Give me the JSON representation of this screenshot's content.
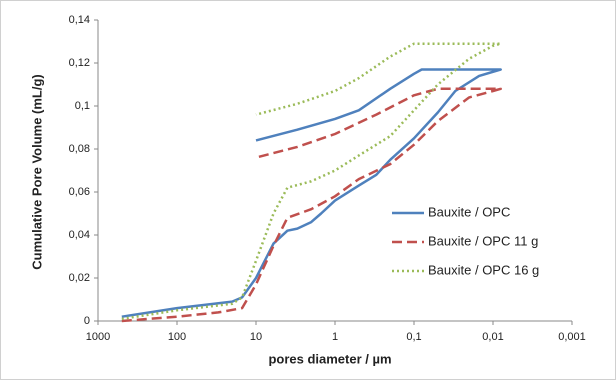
{
  "chart_data": {
    "type": "line",
    "xlabel": "pores diameter / µm",
    "ylabel": "Cumulative Pore Volume  (mL/g)",
    "xscale": "log",
    "xlim": [
      1000,
      0.001
    ],
    "xticks": [
      1000,
      100,
      10,
      1,
      {
        "value": 0.1,
        "label": "0,1"
      },
      {
        "value": 0.01,
        "label": "0,01"
      },
      {
        "value": 0.001,
        "label": "0,001"
      }
    ],
    "ylim": [
      0,
      0.14
    ],
    "yticks": [
      0,
      {
        "value": 0.02,
        "label": "0,02"
      },
      {
        "value": 0.04,
        "label": "0,04"
      },
      {
        "value": 0.06,
        "label": "0,06"
      },
      {
        "value": 0.08,
        "label": "0,08"
      },
      {
        "value": 0.1,
        "label": "0,1"
      },
      {
        "value": 0.12,
        "label": "0,12"
      },
      {
        "value": 0.14,
        "label": "0,14"
      }
    ],
    "grid": false,
    "legend": "right",
    "series": [
      {
        "name": "Bauxite / OPC",
        "color": "#4f81bd",
        "dash": "solid",
        "x": [
          500,
          100,
          20,
          15,
          10,
          6,
          4,
          3,
          2,
          1.5,
          1,
          0.5,
          0.3,
          0.2,
          0.1,
          0.05,
          0.03,
          0.015,
          0.008,
          0.08,
          0.1,
          0.2,
          0.5,
          1,
          3,
          10
        ],
        "values": [
          0.002,
          0.006,
          0.009,
          0.011,
          0.02,
          0.036,
          0.042,
          0.043,
          0.046,
          0.05,
          0.056,
          0.063,
          0.068,
          0.075,
          0.085,
          0.097,
          0.107,
          0.114,
          0.117,
          0.117,
          0.115,
          0.108,
          0.098,
          0.094,
          0.089,
          0.084
        ]
      },
      {
        "name": "Bauxite / OPC 11 g",
        "color": "#c0504d",
        "dash": "dashed",
        "x": [
          500,
          100,
          30,
          15,
          10,
          6,
          4,
          2,
          1,
          0.5,
          0.2,
          0.1,
          0.05,
          0.02,
          0.01,
          0.008,
          0.05,
          0.1,
          0.3,
          1,
          3,
          10
        ],
        "values": [
          0.0,
          0.002,
          0.004,
          0.006,
          0.017,
          0.035,
          0.048,
          0.052,
          0.058,
          0.066,
          0.073,
          0.082,
          0.093,
          0.104,
          0.107,
          0.108,
          0.108,
          0.105,
          0.096,
          0.087,
          0.081,
          0.076
        ]
      },
      {
        "name": "Bauxite / OPC 16 g",
        "color": "#9bbb59",
        "dash": "dotted",
        "x": [
          500,
          100,
          20,
          15,
          10,
          6,
          4,
          2,
          1,
          0.5,
          0.2,
          0.1,
          0.05,
          0.02,
          0.01,
          0.008,
          0.1,
          0.2,
          0.5,
          1,
          3,
          10
        ],
        "values": [
          0.001,
          0.005,
          0.008,
          0.011,
          0.028,
          0.05,
          0.062,
          0.065,
          0.07,
          0.077,
          0.086,
          0.098,
          0.11,
          0.122,
          0.128,
          0.129,
          0.129,
          0.123,
          0.113,
          0.107,
          0.101,
          0.096
        ]
      }
    ]
  }
}
